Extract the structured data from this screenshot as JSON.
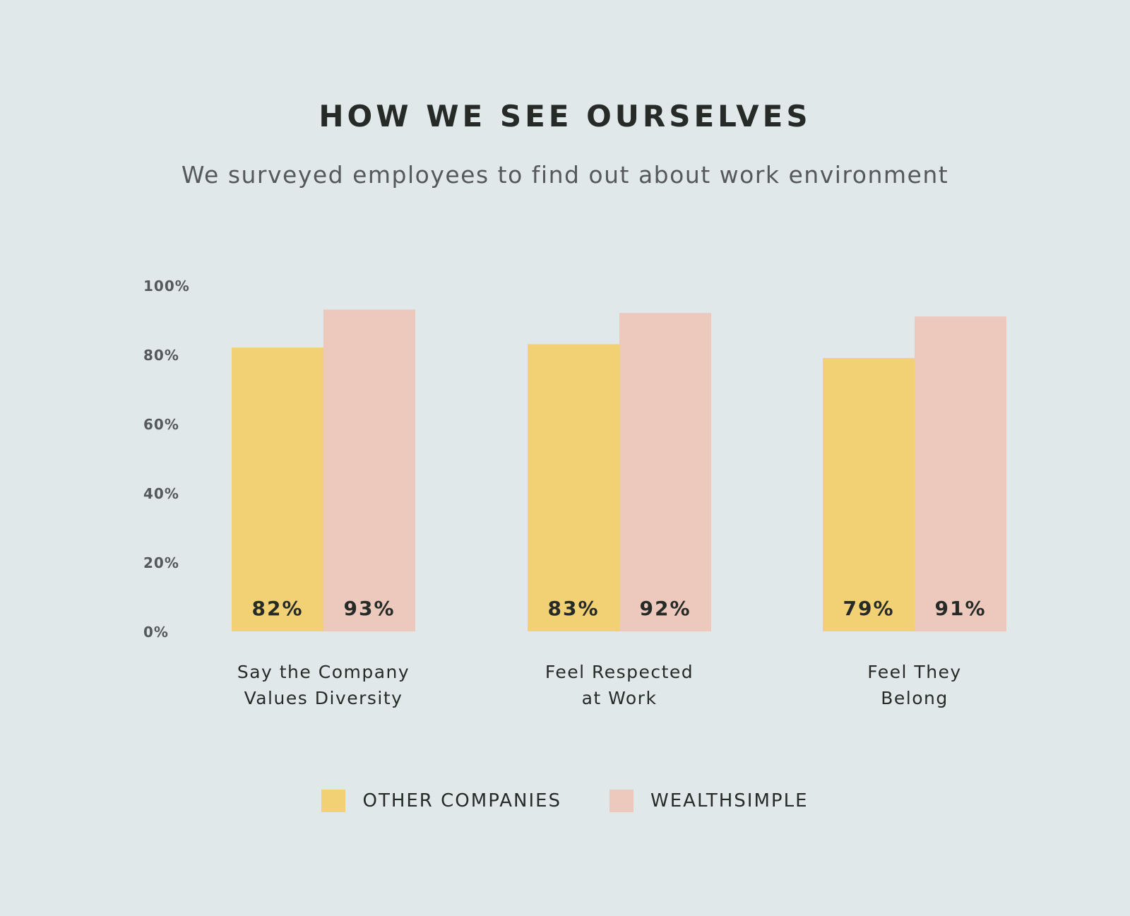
{
  "colors": {
    "background": "#e1e8ea",
    "other_companies": "#f2d175",
    "wealthsimple": "#edc8bd",
    "text_dark": "#262b28",
    "text_axis": "#55595a"
  },
  "chart_data": {
    "type": "bar",
    "title": "HOW WE SEE OURSELVES",
    "subtitle": "We surveyed employees to find out about work environment",
    "categories": [
      [
        "Say the Company",
        "Values Diversity"
      ],
      [
        "Feel Respected",
        "at Work"
      ],
      [
        "Feel They",
        "Belong"
      ]
    ],
    "series": [
      {
        "name": "OTHER COMPANIES",
        "values": [
          82,
          83,
          79
        ],
        "labels": [
          "82%",
          "83%",
          "79%"
        ],
        "color": "#f2d175"
      },
      {
        "name": "WEALTHSIMPLE",
        "values": [
          93,
          92,
          91
        ],
        "labels": [
          "93%",
          "92%",
          "91%"
        ],
        "color": "#edc8bd"
      }
    ],
    "ylim": [
      0,
      100
    ],
    "yticks": [
      0,
      20,
      40,
      60,
      80,
      100
    ],
    "ytick_labels": [
      "0%",
      "20%",
      "40%",
      "60%",
      "80%",
      "100%"
    ],
    "grid": false,
    "legend_position": "bottom-center"
  }
}
